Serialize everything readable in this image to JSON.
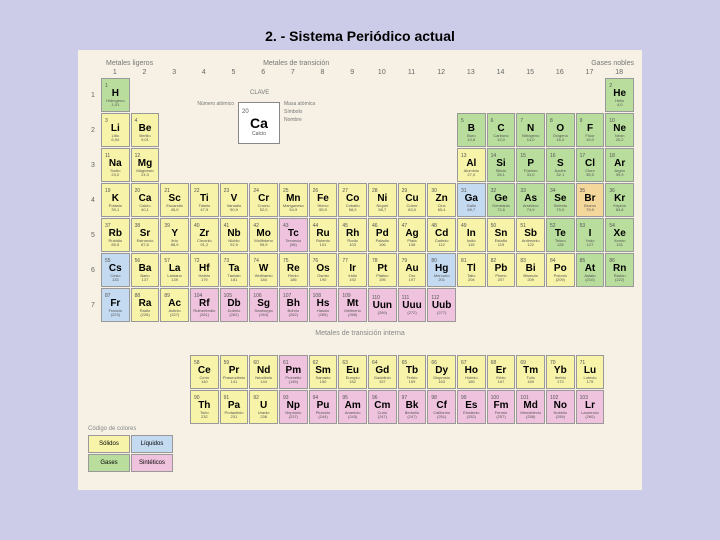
{
  "title": "2. - Sistema Periódico actual",
  "sectionLabels": {
    "light": "Metales ligeros",
    "transition": "Metales de transición",
    "nobles": "Gases nobles"
  },
  "claveTitle": "CLAVE",
  "key": {
    "num": "20",
    "sym": "Ca",
    "name": "Calcio"
  },
  "keyLabelsLeft": [
    "Número atómico"
  ],
  "keyLabelsRight": [
    "Masa atómica",
    "Símbolo",
    "Nombre"
  ],
  "periods": [
    "1",
    "2",
    "3",
    "4",
    "5",
    "6",
    "7"
  ],
  "periodHeader": "Períodos",
  "groups": [
    "1",
    "2",
    "3",
    "4",
    "5",
    "6",
    "7",
    "8",
    "9",
    "10",
    "11",
    "12",
    "13",
    "14",
    "15",
    "16",
    "17",
    "18"
  ],
  "groupNotes": {
    "1": "(1 A)",
    "2": "(2 A)",
    "3": "(3 A)"
  },
  "innerTransitionLabel": "Metales de transición interna",
  "legend": {
    "title": "Código de colores",
    "cells": [
      "Sólidos",
      "Líquidos",
      "Gases",
      "Sintéticos"
    ],
    "colors": [
      "#f7f3a8",
      "#c3daf0",
      "#b8dd9c",
      "#efc3dd"
    ]
  },
  "colors": {
    "yellow": "#f7f3a8",
    "green": "#b8dd9c",
    "blue": "#c3daf0",
    "pink": "#efc3dd",
    "orange": "#f4d79a",
    "highlight_red": "#d94a3a"
  },
  "elements": [
    {
      "p": 1,
      "g": 1,
      "n": "1",
      "s": "H",
      "nm": "Hidrógeno",
      "m": "1,01",
      "c": "green"
    },
    {
      "p": 1,
      "g": 18,
      "n": "2",
      "s": "He",
      "nm": "Helio",
      "m": "4,0",
      "c": "green"
    },
    {
      "p": 2,
      "g": 1,
      "n": "3",
      "s": "Li",
      "nm": "Litio",
      "m": "6,94",
      "c": "yellow"
    },
    {
      "p": 2,
      "g": 2,
      "n": "4",
      "s": "Be",
      "nm": "Berilio",
      "m": "9,01",
      "c": "yellow"
    },
    {
      "p": 2,
      "g": 13,
      "n": "5",
      "s": "B",
      "nm": "Boro",
      "m": "10,8",
      "c": "green"
    },
    {
      "p": 2,
      "g": 14,
      "n": "6",
      "s": "C",
      "nm": "Carbono",
      "m": "12,0",
      "c": "green"
    },
    {
      "p": 2,
      "g": 15,
      "n": "7",
      "s": "N",
      "nm": "Nitrógeno",
      "m": "14,0",
      "c": "green"
    },
    {
      "p": 2,
      "g": 16,
      "n": "8",
      "s": "O",
      "nm": "Oxígeno",
      "m": "16,0",
      "c": "green"
    },
    {
      "p": 2,
      "g": 17,
      "n": "9",
      "s": "F",
      "nm": "Flúor",
      "m": "19,0",
      "c": "green"
    },
    {
      "p": 2,
      "g": 18,
      "n": "10",
      "s": "Ne",
      "nm": "Neón",
      "m": "20,2",
      "c": "green"
    },
    {
      "p": 3,
      "g": 1,
      "n": "11",
      "s": "Na",
      "nm": "Sodio",
      "m": "23,0",
      "c": "yellow"
    },
    {
      "p": 3,
      "g": 2,
      "n": "12",
      "s": "Mg",
      "nm": "Magnesio",
      "m": "24,3",
      "c": "yellow"
    },
    {
      "p": 3,
      "g": 13,
      "n": "13",
      "s": "Al",
      "nm": "Aluminio",
      "m": "27,0",
      "c": "yellow"
    },
    {
      "p": 3,
      "g": 14,
      "n": "14",
      "s": "Si",
      "nm": "Silicio",
      "m": "28,1",
      "c": "green"
    },
    {
      "p": 3,
      "g": 15,
      "n": "15",
      "s": "P",
      "nm": "Fósforo",
      "m": "31,0",
      "c": "green"
    },
    {
      "p": 3,
      "g": 16,
      "n": "16",
      "s": "S",
      "nm": "Azufre",
      "m": "32,1",
      "c": "green"
    },
    {
      "p": 3,
      "g": 17,
      "n": "17",
      "s": "Cl",
      "nm": "Cloro",
      "m": "35,5",
      "c": "green"
    },
    {
      "p": 3,
      "g": 18,
      "n": "18",
      "s": "Ar",
      "nm": "Argón",
      "m": "39,9",
      "c": "green"
    },
    {
      "p": 4,
      "g": 1,
      "n": "19",
      "s": "K",
      "nm": "Potasio",
      "m": "39,1",
      "c": "yellow"
    },
    {
      "p": 4,
      "g": 2,
      "n": "20",
      "s": "Ca",
      "nm": "Calcio",
      "m": "40,1",
      "c": "yellow"
    },
    {
      "p": 4,
      "g": 3,
      "n": "21",
      "s": "Sc",
      "nm": "Escandio",
      "m": "45,0",
      "c": "yellow"
    },
    {
      "p": 4,
      "g": 4,
      "n": "22",
      "s": "Ti",
      "nm": "Titanio",
      "m": "47,9",
      "c": "yellow"
    },
    {
      "p": 4,
      "g": 5,
      "n": "23",
      "s": "V",
      "nm": "Vanadio",
      "m": "50,9",
      "c": "yellow"
    },
    {
      "p": 4,
      "g": 6,
      "n": "24",
      "s": "Cr",
      "nm": "Cromo",
      "m": "52,0",
      "c": "yellow"
    },
    {
      "p": 4,
      "g": 7,
      "n": "25",
      "s": "Mn",
      "nm": "Manganeso",
      "m": "54,9",
      "c": "yellow"
    },
    {
      "p": 4,
      "g": 8,
      "n": "26",
      "s": "Fe",
      "nm": "Hierro",
      "m": "55,9",
      "c": "yellow"
    },
    {
      "p": 4,
      "g": 9,
      "n": "27",
      "s": "Co",
      "nm": "Cobalto",
      "m": "58,9",
      "c": "yellow"
    },
    {
      "p": 4,
      "g": 10,
      "n": "28",
      "s": "Ni",
      "nm": "Níquel",
      "m": "58,7",
      "c": "yellow"
    },
    {
      "p": 4,
      "g": 11,
      "n": "29",
      "s": "Cu",
      "nm": "Cobre",
      "m": "63,5",
      "c": "yellow"
    },
    {
      "p": 4,
      "g": 12,
      "n": "30",
      "s": "Zn",
      "nm": "Cinc",
      "m": "65,4",
      "c": "yellow"
    },
    {
      "p": 4,
      "g": 13,
      "n": "31",
      "s": "Ga",
      "nm": "Galio",
      "m": "69,7",
      "c": "blue"
    },
    {
      "p": 4,
      "g": 14,
      "n": "32",
      "s": "Ge",
      "nm": "Germanio",
      "m": "72,6",
      "c": "green"
    },
    {
      "p": 4,
      "g": 15,
      "n": "33",
      "s": "As",
      "nm": "Arsénico",
      "m": "74,9",
      "c": "green"
    },
    {
      "p": 4,
      "g": 16,
      "n": "34",
      "s": "Se",
      "nm": "Selenio",
      "m": "79,0",
      "c": "green"
    },
    {
      "p": 4,
      "g": 17,
      "n": "35",
      "s": "Br",
      "nm": "Bromo",
      "m": "79,9",
      "c": "orange"
    },
    {
      "p": 4,
      "g": 18,
      "n": "36",
      "s": "Kr",
      "nm": "Kriptón",
      "m": "83,8",
      "c": "green"
    },
    {
      "p": 5,
      "g": 1,
      "n": "37",
      "s": "Rb",
      "nm": "Rubidio",
      "m": "85,5",
      "c": "yellow"
    },
    {
      "p": 5,
      "g": 2,
      "n": "38",
      "s": "Sr",
      "nm": "Estroncio",
      "m": "87,6",
      "c": "yellow"
    },
    {
      "p": 5,
      "g": 3,
      "n": "39",
      "s": "Y",
      "nm": "Itrio",
      "m": "88,9",
      "c": "yellow"
    },
    {
      "p": 5,
      "g": 4,
      "n": "40",
      "s": "Zr",
      "nm": "Circonio",
      "m": "91,2",
      "c": "yellow"
    },
    {
      "p": 5,
      "g": 5,
      "n": "41",
      "s": "Nb",
      "nm": "Niobio",
      "m": "92,9",
      "c": "yellow"
    },
    {
      "p": 5,
      "g": 6,
      "n": "42",
      "s": "Mo",
      "nm": "Molibdeno",
      "m": "95,9",
      "c": "yellow"
    },
    {
      "p": 5,
      "g": 7,
      "n": "43",
      "s": "Tc",
      "nm": "Tecnecio",
      "m": "(98)",
      "c": "pink"
    },
    {
      "p": 5,
      "g": 8,
      "n": "44",
      "s": "Ru",
      "nm": "Rutenio",
      "m": "101",
      "c": "yellow"
    },
    {
      "p": 5,
      "g": 9,
      "n": "45",
      "s": "Rh",
      "nm": "Rodio",
      "m": "103",
      "c": "yellow"
    },
    {
      "p": 5,
      "g": 10,
      "n": "46",
      "s": "Pd",
      "nm": "Paladio",
      "m": "106",
      "c": "yellow"
    },
    {
      "p": 5,
      "g": 11,
      "n": "47",
      "s": "Ag",
      "nm": "Plata",
      "m": "108",
      "c": "yellow"
    },
    {
      "p": 5,
      "g": 12,
      "n": "48",
      "s": "Cd",
      "nm": "Cadmio",
      "m": "112",
      "c": "yellow"
    },
    {
      "p": 5,
      "g": 13,
      "n": "49",
      "s": "In",
      "nm": "Indio",
      "m": "115",
      "c": "yellow"
    },
    {
      "p": 5,
      "g": 14,
      "n": "50",
      "s": "Sn",
      "nm": "Estaño",
      "m": "119",
      "c": "yellow"
    },
    {
      "p": 5,
      "g": 15,
      "n": "51",
      "s": "Sb",
      "nm": "Antimonio",
      "m": "122",
      "c": "yellow"
    },
    {
      "p": 5,
      "g": 16,
      "n": "52",
      "s": "Te",
      "nm": "Teluro",
      "m": "128",
      "c": "green"
    },
    {
      "p": 5,
      "g": 17,
      "n": "53",
      "s": "I",
      "nm": "Yodo",
      "m": "127",
      "c": "green"
    },
    {
      "p": 5,
      "g": 18,
      "n": "54",
      "s": "Xe",
      "nm": "Xenón",
      "m": "131",
      "c": "green"
    },
    {
      "p": 6,
      "g": 1,
      "n": "55",
      "s": "Cs",
      "nm": "Cesio",
      "m": "133",
      "c": "blue"
    },
    {
      "p": 6,
      "g": 2,
      "n": "56",
      "s": "Ba",
      "nm": "Bario",
      "m": "137",
      "c": "yellow"
    },
    {
      "p": 6,
      "g": 3,
      "n": "57",
      "s": "La",
      "nm": "Lantano",
      "m": "139",
      "c": "yellow"
    },
    {
      "p": 6,
      "g": 4,
      "n": "72",
      "s": "Hf",
      "nm": "Hafnio",
      "m": "179",
      "c": "yellow"
    },
    {
      "p": 6,
      "g": 5,
      "n": "73",
      "s": "Ta",
      "nm": "Tántalo",
      "m": "181",
      "c": "yellow"
    },
    {
      "p": 6,
      "g": 6,
      "n": "74",
      "s": "W",
      "nm": "Wolframio",
      "m": "184",
      "c": "yellow"
    },
    {
      "p": 6,
      "g": 7,
      "n": "75",
      "s": "Re",
      "nm": "Renio",
      "m": "186",
      "c": "yellow"
    },
    {
      "p": 6,
      "g": 8,
      "n": "76",
      "s": "Os",
      "nm": "Osmio",
      "m": "190",
      "c": "yellow"
    },
    {
      "p": 6,
      "g": 9,
      "n": "77",
      "s": "Ir",
      "nm": "Iridio",
      "m": "192",
      "c": "yellow"
    },
    {
      "p": 6,
      "g": 10,
      "n": "78",
      "s": "Pt",
      "nm": "Platino",
      "m": "195",
      "c": "yellow"
    },
    {
      "p": 6,
      "g": 11,
      "n": "79",
      "s": "Au",
      "nm": "Oro",
      "m": "197",
      "c": "yellow"
    },
    {
      "p": 6,
      "g": 12,
      "n": "80",
      "s": "Hg",
      "nm": "Mercurio",
      "m": "201",
      "c": "blue"
    },
    {
      "p": 6,
      "g": 13,
      "n": "81",
      "s": "Tl",
      "nm": "Talio",
      "m": "204",
      "c": "yellow"
    },
    {
      "p": 6,
      "g": 14,
      "n": "82",
      "s": "Pb",
      "nm": "Plomo",
      "m": "207",
      "c": "yellow"
    },
    {
      "p": 6,
      "g": 15,
      "n": "83",
      "s": "Bi",
      "nm": "Bismuto",
      "m": "209",
      "c": "yellow"
    },
    {
      "p": 6,
      "g": 16,
      "n": "84",
      "s": "Po",
      "nm": "Polonio",
      "m": "(209)",
      "c": "yellow"
    },
    {
      "p": 6,
      "g": 17,
      "n": "85",
      "s": "At",
      "nm": "Astato",
      "m": "(210)",
      "c": "green"
    },
    {
      "p": 6,
      "g": 18,
      "n": "86",
      "s": "Rn",
      "nm": "Radón",
      "m": "(222)",
      "c": "green"
    },
    {
      "p": 7,
      "g": 1,
      "n": "87",
      "s": "Fr",
      "nm": "Francio",
      "m": "(223)",
      "c": "blue"
    },
    {
      "p": 7,
      "g": 2,
      "n": "88",
      "s": "Ra",
      "nm": "Radio",
      "m": "(226)",
      "c": "yellow"
    },
    {
      "p": 7,
      "g": 3,
      "n": "89",
      "s": "Ac",
      "nm": "Actinio",
      "m": "(227)",
      "c": "yellow"
    },
    {
      "p": 7,
      "g": 4,
      "n": "104",
      "s": "Rf",
      "nm": "Rutherfordio",
      "m": "(261)",
      "c": "pink"
    },
    {
      "p": 7,
      "g": 5,
      "n": "105",
      "s": "Db",
      "nm": "Dubnio",
      "m": "(262)",
      "c": "pink"
    },
    {
      "p": 7,
      "g": 6,
      "n": "106",
      "s": "Sg",
      "nm": "Seaborgio",
      "m": "(263)",
      "c": "pink"
    },
    {
      "p": 7,
      "g": 7,
      "n": "107",
      "s": "Bh",
      "nm": "Bohrio",
      "m": "(262)",
      "c": "pink"
    },
    {
      "p": 7,
      "g": 8,
      "n": "108",
      "s": "Hs",
      "nm": "Hassio",
      "m": "(265)",
      "c": "pink"
    },
    {
      "p": 7,
      "g": 9,
      "n": "109",
      "s": "Mt",
      "nm": "Meitnerio",
      "m": "(266)",
      "c": "pink"
    },
    {
      "p": 7,
      "g": 10,
      "n": "110",
      "s": "Uun",
      "nm": "",
      "m": "(269)",
      "c": "pink"
    },
    {
      "p": 7,
      "g": 11,
      "n": "111",
      "s": "Uuu",
      "nm": "",
      "m": "(272)",
      "c": "pink"
    },
    {
      "p": 7,
      "g": 12,
      "n": "112",
      "s": "Uub",
      "nm": "",
      "m": "(277)",
      "c": "pink"
    }
  ],
  "lanthanides": [
    {
      "n": "58",
      "s": "Ce",
      "nm": "Cerio",
      "m": "140",
      "c": "yellow"
    },
    {
      "n": "59",
      "s": "Pr",
      "nm": "Praseodimio",
      "m": "141",
      "c": "yellow"
    },
    {
      "n": "60",
      "s": "Nd",
      "nm": "Neodimio",
      "m": "144",
      "c": "yellow"
    },
    {
      "n": "61",
      "s": "Pm",
      "nm": "Prometio",
      "m": "(145)",
      "c": "pink"
    },
    {
      "n": "62",
      "s": "Sm",
      "nm": "Samario",
      "m": "150",
      "c": "yellow"
    },
    {
      "n": "63",
      "s": "Eu",
      "nm": "Europio",
      "m": "152",
      "c": "yellow"
    },
    {
      "n": "64",
      "s": "Gd",
      "nm": "Gadolinio",
      "m": "157",
      "c": "yellow"
    },
    {
      "n": "65",
      "s": "Tb",
      "nm": "Terbio",
      "m": "159",
      "c": "yellow"
    },
    {
      "n": "66",
      "s": "Dy",
      "nm": "Disprosio",
      "m": "163",
      "c": "yellow"
    },
    {
      "n": "67",
      "s": "Ho",
      "nm": "Holmio",
      "m": "165",
      "c": "yellow"
    },
    {
      "n": "68",
      "s": "Er",
      "nm": "Erbio",
      "m": "167",
      "c": "yellow"
    },
    {
      "n": "69",
      "s": "Tm",
      "nm": "Tulio",
      "m": "169",
      "c": "yellow"
    },
    {
      "n": "70",
      "s": "Yb",
      "nm": "Iterbio",
      "m": "173",
      "c": "yellow"
    },
    {
      "n": "71",
      "s": "Lu",
      "nm": "Lutecio",
      "m": "175",
      "c": "yellow"
    }
  ],
  "actinides": [
    {
      "n": "90",
      "s": "Th",
      "nm": "Torio",
      "m": "232",
      "c": "yellow"
    },
    {
      "n": "91",
      "s": "Pa",
      "nm": "Protactinio",
      "m": "231",
      "c": "yellow"
    },
    {
      "n": "92",
      "s": "U",
      "nm": "Uranio",
      "m": "238",
      "c": "yellow"
    },
    {
      "n": "93",
      "s": "Np",
      "nm": "Neptunio",
      "m": "(237)",
      "c": "pink"
    },
    {
      "n": "94",
      "s": "Pu",
      "nm": "Plutonio",
      "m": "(244)",
      "c": "pink"
    },
    {
      "n": "95",
      "s": "Am",
      "nm": "Americio",
      "m": "(243)",
      "c": "pink"
    },
    {
      "n": "96",
      "s": "Cm",
      "nm": "Curio",
      "m": "(247)",
      "c": "pink"
    },
    {
      "n": "97",
      "s": "Bk",
      "nm": "Berkelio",
      "m": "(247)",
      "c": "pink"
    },
    {
      "n": "98",
      "s": "Cf",
      "nm": "Californio",
      "m": "(251)",
      "c": "pink"
    },
    {
      "n": "99",
      "s": "Es",
      "nm": "Einstenio",
      "m": "(252)",
      "c": "pink"
    },
    {
      "n": "100",
      "s": "Fm",
      "nm": "Fermio",
      "m": "(257)",
      "c": "pink"
    },
    {
      "n": "101",
      "s": "Md",
      "nm": "Mendelevio",
      "m": "(258)",
      "c": "pink"
    },
    {
      "n": "102",
      "s": "No",
      "nm": "Nobelio",
      "m": "(259)",
      "c": "pink"
    },
    {
      "n": "103",
      "s": "Lr",
      "nm": "Laurencio",
      "m": "(260)",
      "c": "pink"
    }
  ]
}
